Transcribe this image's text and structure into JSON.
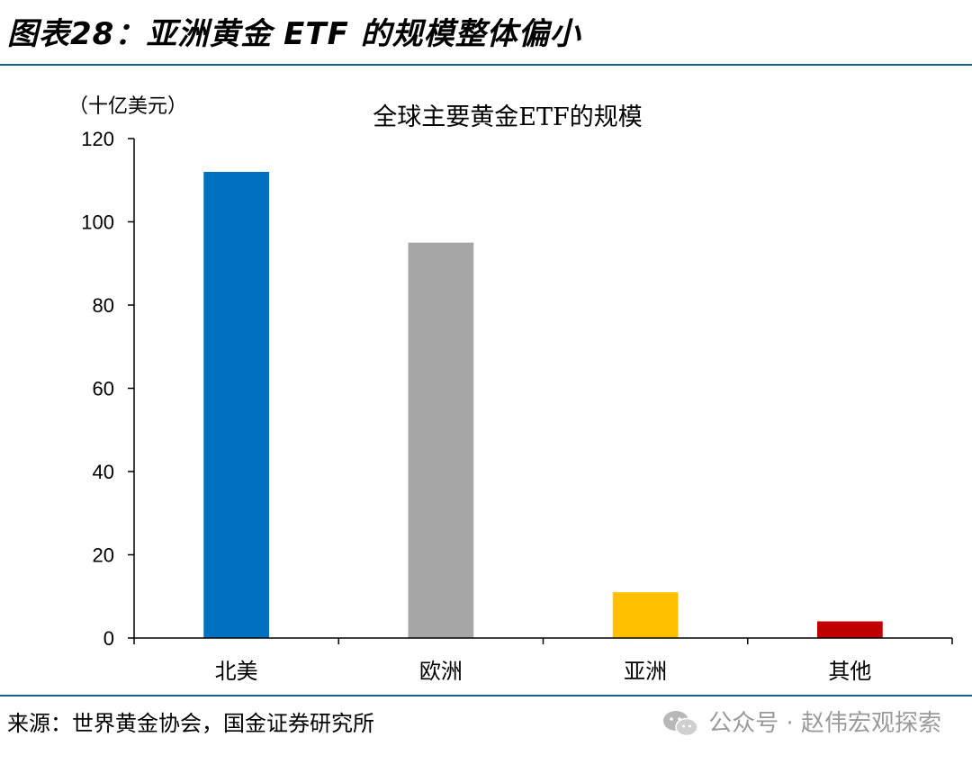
{
  "figure": {
    "title": "图表28：亚洲黄金 ETF 的规模整体偏小",
    "source": "来源：世界黄金协会，国金证券研究所",
    "watermark": "公众号 · 赵伟宏观探索",
    "watermark_icon": "wechat-icon"
  },
  "chart_data": {
    "type": "bar",
    "title": "全球主要黄金ETF的规模",
    "ylabel": "（十亿美元）",
    "xlabel": "",
    "categories": [
      "北美",
      "欧洲",
      "亚洲",
      "其他"
    ],
    "values": [
      112,
      95,
      11,
      4
    ],
    "colors": [
      "#0070c0",
      "#a6a6a6",
      "#ffc000",
      "#c00000"
    ],
    "ylim": [
      0,
      120
    ],
    "yticks": [
      0,
      20,
      40,
      60,
      80,
      100,
      120
    ],
    "grid": false,
    "legend": "none"
  }
}
